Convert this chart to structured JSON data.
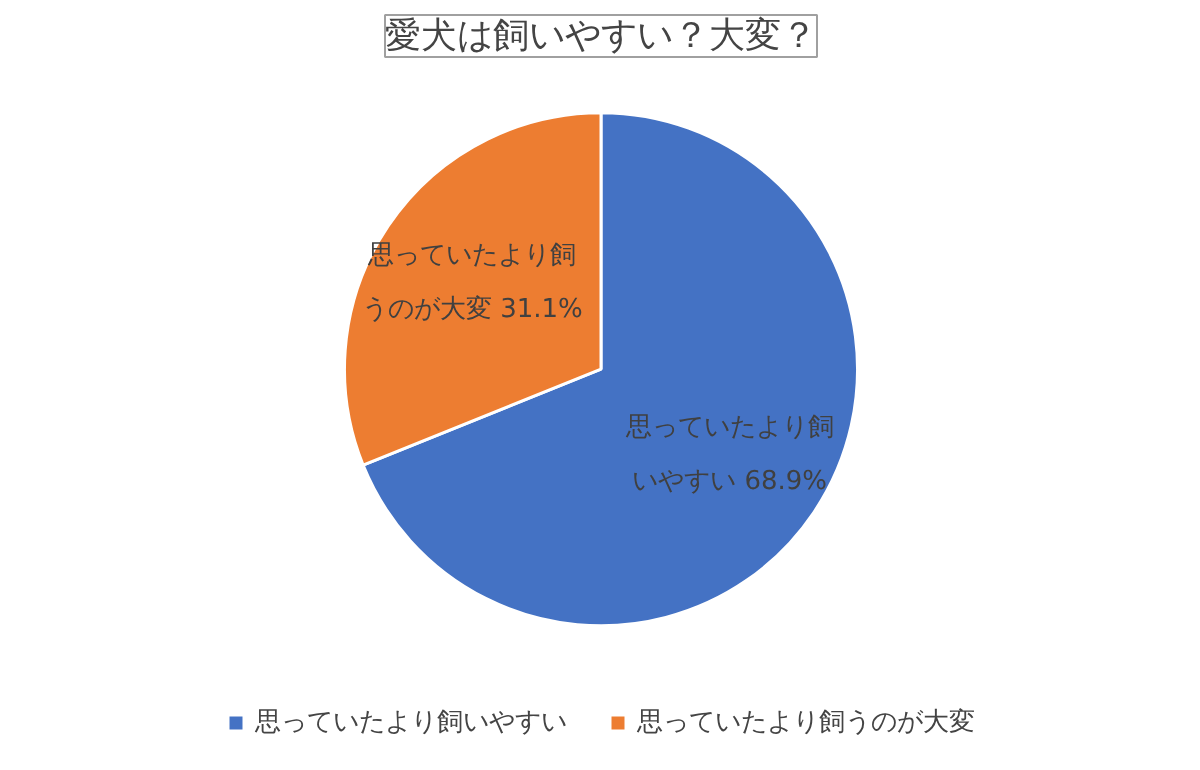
{
  "chart_data": {
    "type": "pie",
    "title": "愛犬は飼いやすい？大変？",
    "categories": [
      "思っていたより飼いやすい",
      "思っていたより飼うのが大変"
    ],
    "values": [
      68.9,
      31.1
    ],
    "colors": [
      "#4472c4",
      "#ed7d31"
    ],
    "value_labels": [
      "思っていたより飼いやすい 68.9%",
      "思っていたより飼うのが大変 31.1%"
    ],
    "legend": "bottom"
  }
}
